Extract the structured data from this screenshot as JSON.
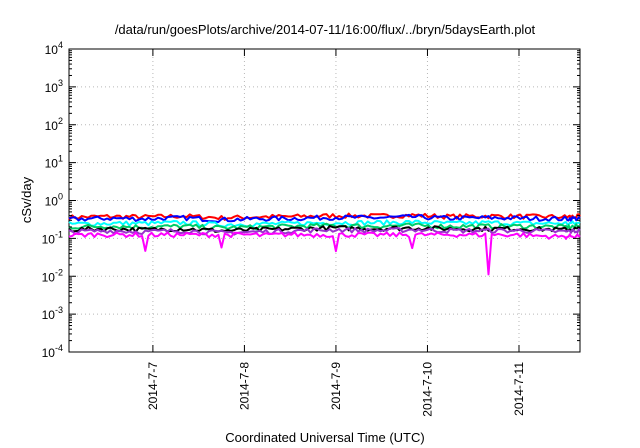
{
  "chart_data": {
    "type": "line",
    "title": "/data/run/goesPlots/archive/2014-07-11/16:00/flux/../bryn/5daysEarth.plot",
    "xlabel": "Coordinated Universal Time (UTC)",
    "ylabel": "cSv/day",
    "yscale": "log",
    "ylim": [
      0.0001,
      10000
    ],
    "xlim": [
      "2014-07-06 02:00",
      "2014-07-11 16:00"
    ],
    "grid": true,
    "legend": "none",
    "y_ticks": [
      {
        "value": 0.0001,
        "base": "10",
        "exp": "-4"
      },
      {
        "value": 0.001,
        "base": "10",
        "exp": "-3"
      },
      {
        "value": 0.01,
        "base": "10",
        "exp": "-2"
      },
      {
        "value": 0.1,
        "base": "10",
        "exp": "-1"
      },
      {
        "value": 1,
        "base": "10",
        "exp": "0"
      },
      {
        "value": 10,
        "base": "10",
        "exp": "1"
      },
      {
        "value": 100,
        "base": "10",
        "exp": "2"
      },
      {
        "value": 1000,
        "base": "10",
        "exp": "3"
      },
      {
        "value": 10000,
        "base": "10",
        "exp": "4"
      }
    ],
    "x_ticks": [
      {
        "value": "2014-07-07",
        "label": "2014-7-7"
      },
      {
        "value": "2014-07-08",
        "label": "2014-7-8"
      },
      {
        "value": "2014-07-09",
        "label": "2014-7-9"
      },
      {
        "value": "2014-07-10",
        "label": "2014-7-10"
      },
      {
        "value": "2014-07-11",
        "label": "2014-7-11"
      }
    ],
    "x": [
      "2014-07-06 02:00",
      "2014-07-06 12:00",
      "2014-07-06 22:00",
      "2014-07-07 08:00",
      "2014-07-07 18:00",
      "2014-07-08 04:00",
      "2014-07-08 14:00",
      "2014-07-09 00:00",
      "2014-07-09 10:00",
      "2014-07-09 20:00",
      "2014-07-10 06:00",
      "2014-07-10 16:00",
      "2014-07-11 02:00",
      "2014-07-11 12:00",
      "2014-07-11 16:00"
    ],
    "series": [
      {
        "color": "#ff0000",
        "values": [
          0.36,
          0.38,
          0.37,
          0.39,
          0.35,
          0.37,
          0.38,
          0.4,
          0.39,
          0.41,
          0.38,
          0.39,
          0.38,
          0.37,
          0.38
        ]
      },
      {
        "color": "#0000ff",
        "values": [
          0.32,
          0.34,
          0.33,
          0.35,
          0.31,
          0.33,
          0.34,
          0.36,
          0.35,
          0.37,
          0.34,
          0.35,
          0.34,
          0.33,
          0.34
        ]
      },
      {
        "color": "#00ffff",
        "values": [
          0.24,
          0.25,
          0.25,
          0.26,
          0.23,
          0.24,
          0.25,
          0.26,
          0.26,
          0.27,
          0.25,
          0.26,
          0.25,
          0.25,
          0.25
        ]
      },
      {
        "color": "#00cc66",
        "values": [
          0.2,
          0.21,
          0.2,
          0.21,
          0.19,
          0.2,
          0.21,
          0.22,
          0.21,
          0.22,
          0.21,
          0.21,
          0.21,
          0.2,
          0.21
        ]
      },
      {
        "color": "#000000",
        "values": [
          0.17,
          0.18,
          0.17,
          0.18,
          0.16,
          0.17,
          0.18,
          0.19,
          0.18,
          0.19,
          0.18,
          0.18,
          0.18,
          0.17,
          0.18
        ]
      },
      {
        "color": "#9933cc",
        "values": [
          0.15,
          0.16,
          0.15,
          0.16,
          0.14,
          0.15,
          0.16,
          0.17,
          0.16,
          0.17,
          0.16,
          0.16,
          0.16,
          0.15,
          0.16
        ]
      },
      {
        "color": "#ff00ff",
        "values": [
          0.12,
          0.13,
          0.045,
          0.12,
          0.06,
          0.12,
          0.13,
          0.045,
          0.12,
          0.06,
          0.13,
          0.012,
          0.12,
          0.11,
          0.12
        ]
      }
    ]
  }
}
